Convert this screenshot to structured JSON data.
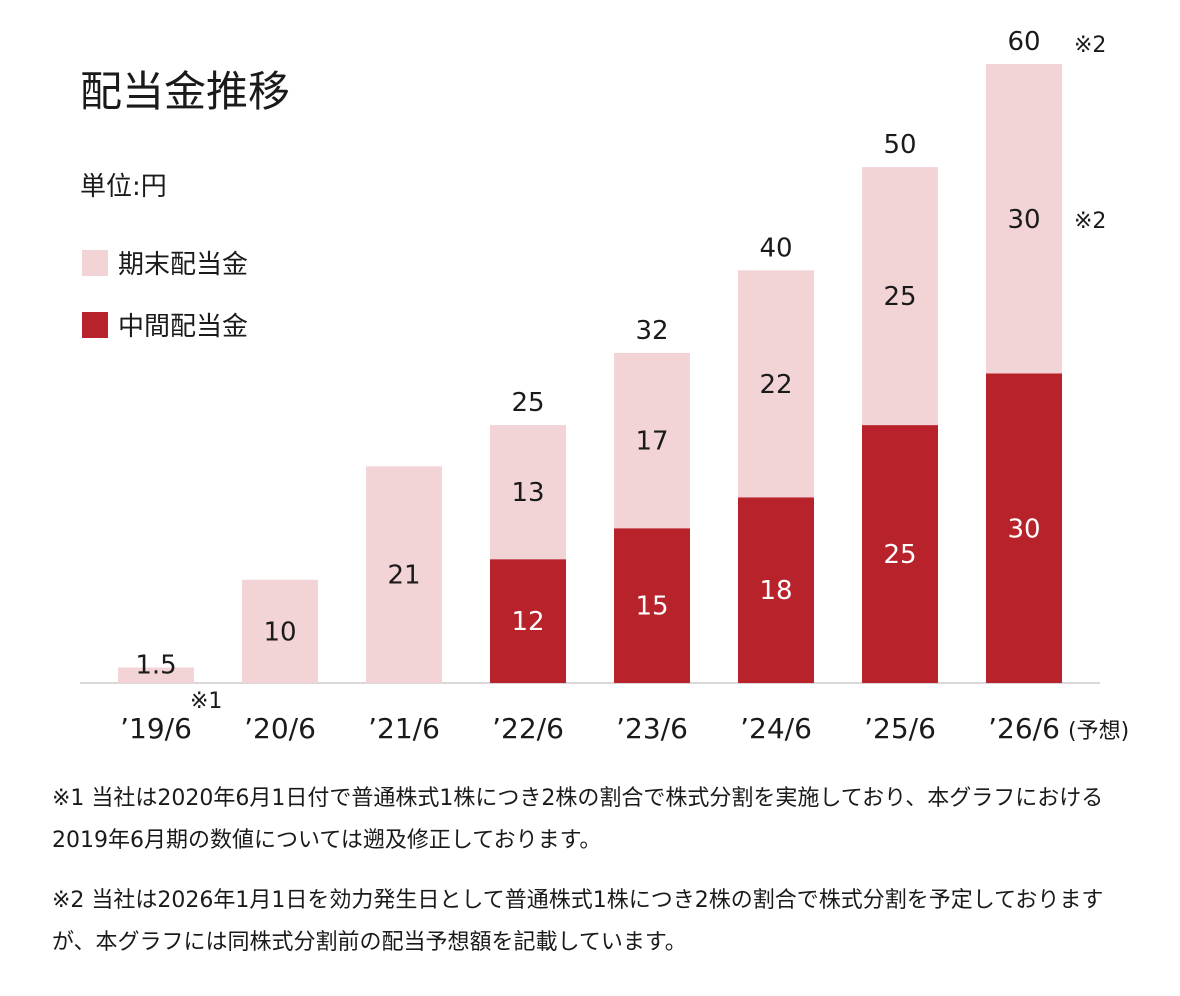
{
  "chart_data": {
    "type": "bar",
    "stacked": true,
    "title": "配当金推移",
    "unit_label": "単位:円",
    "categories": [
      "'19/6",
      "'20/6",
      "'21/6",
      "'22/6",
      "'23/6",
      "'24/6",
      "'25/6",
      "'26/6"
    ],
    "category_suffix": {
      "7": "(予想)"
    },
    "category_marks": {
      "0": "※1"
    },
    "series": [
      {
        "name": "中間配当金",
        "color": "#b8232b",
        "values": [
          0,
          0,
          0,
          12,
          15,
          18,
          25,
          30
        ]
      },
      {
        "name": "期末配当金",
        "color": "#f2d3d6",
        "values": [
          1.5,
          10,
          21,
          13,
          17,
          22,
          25,
          30
        ]
      }
    ],
    "totals": [
      1.5,
      10,
      21,
      25,
      32,
      40,
      50,
      60
    ],
    "total_marks": {
      "7": "※2"
    },
    "segment_marks": {
      "7": "※2"
    },
    "legend_position": "top-left",
    "grid": false,
    "ylim": [
      0,
      60
    ]
  },
  "notes": [
    "※1 当社は2020年6月1日付で普通株式1株につき2株の割合で株式分割を実施しており、本グラフにおける2019年6月期の数値については遡及修正しております。",
    "※2 当社は2026年1月1日を効力発生日として普通株式1株につき2株の割合で株式分割を予定しておりますが、本グラフには同株式分割前の配当予想額を記載しています。"
  ]
}
